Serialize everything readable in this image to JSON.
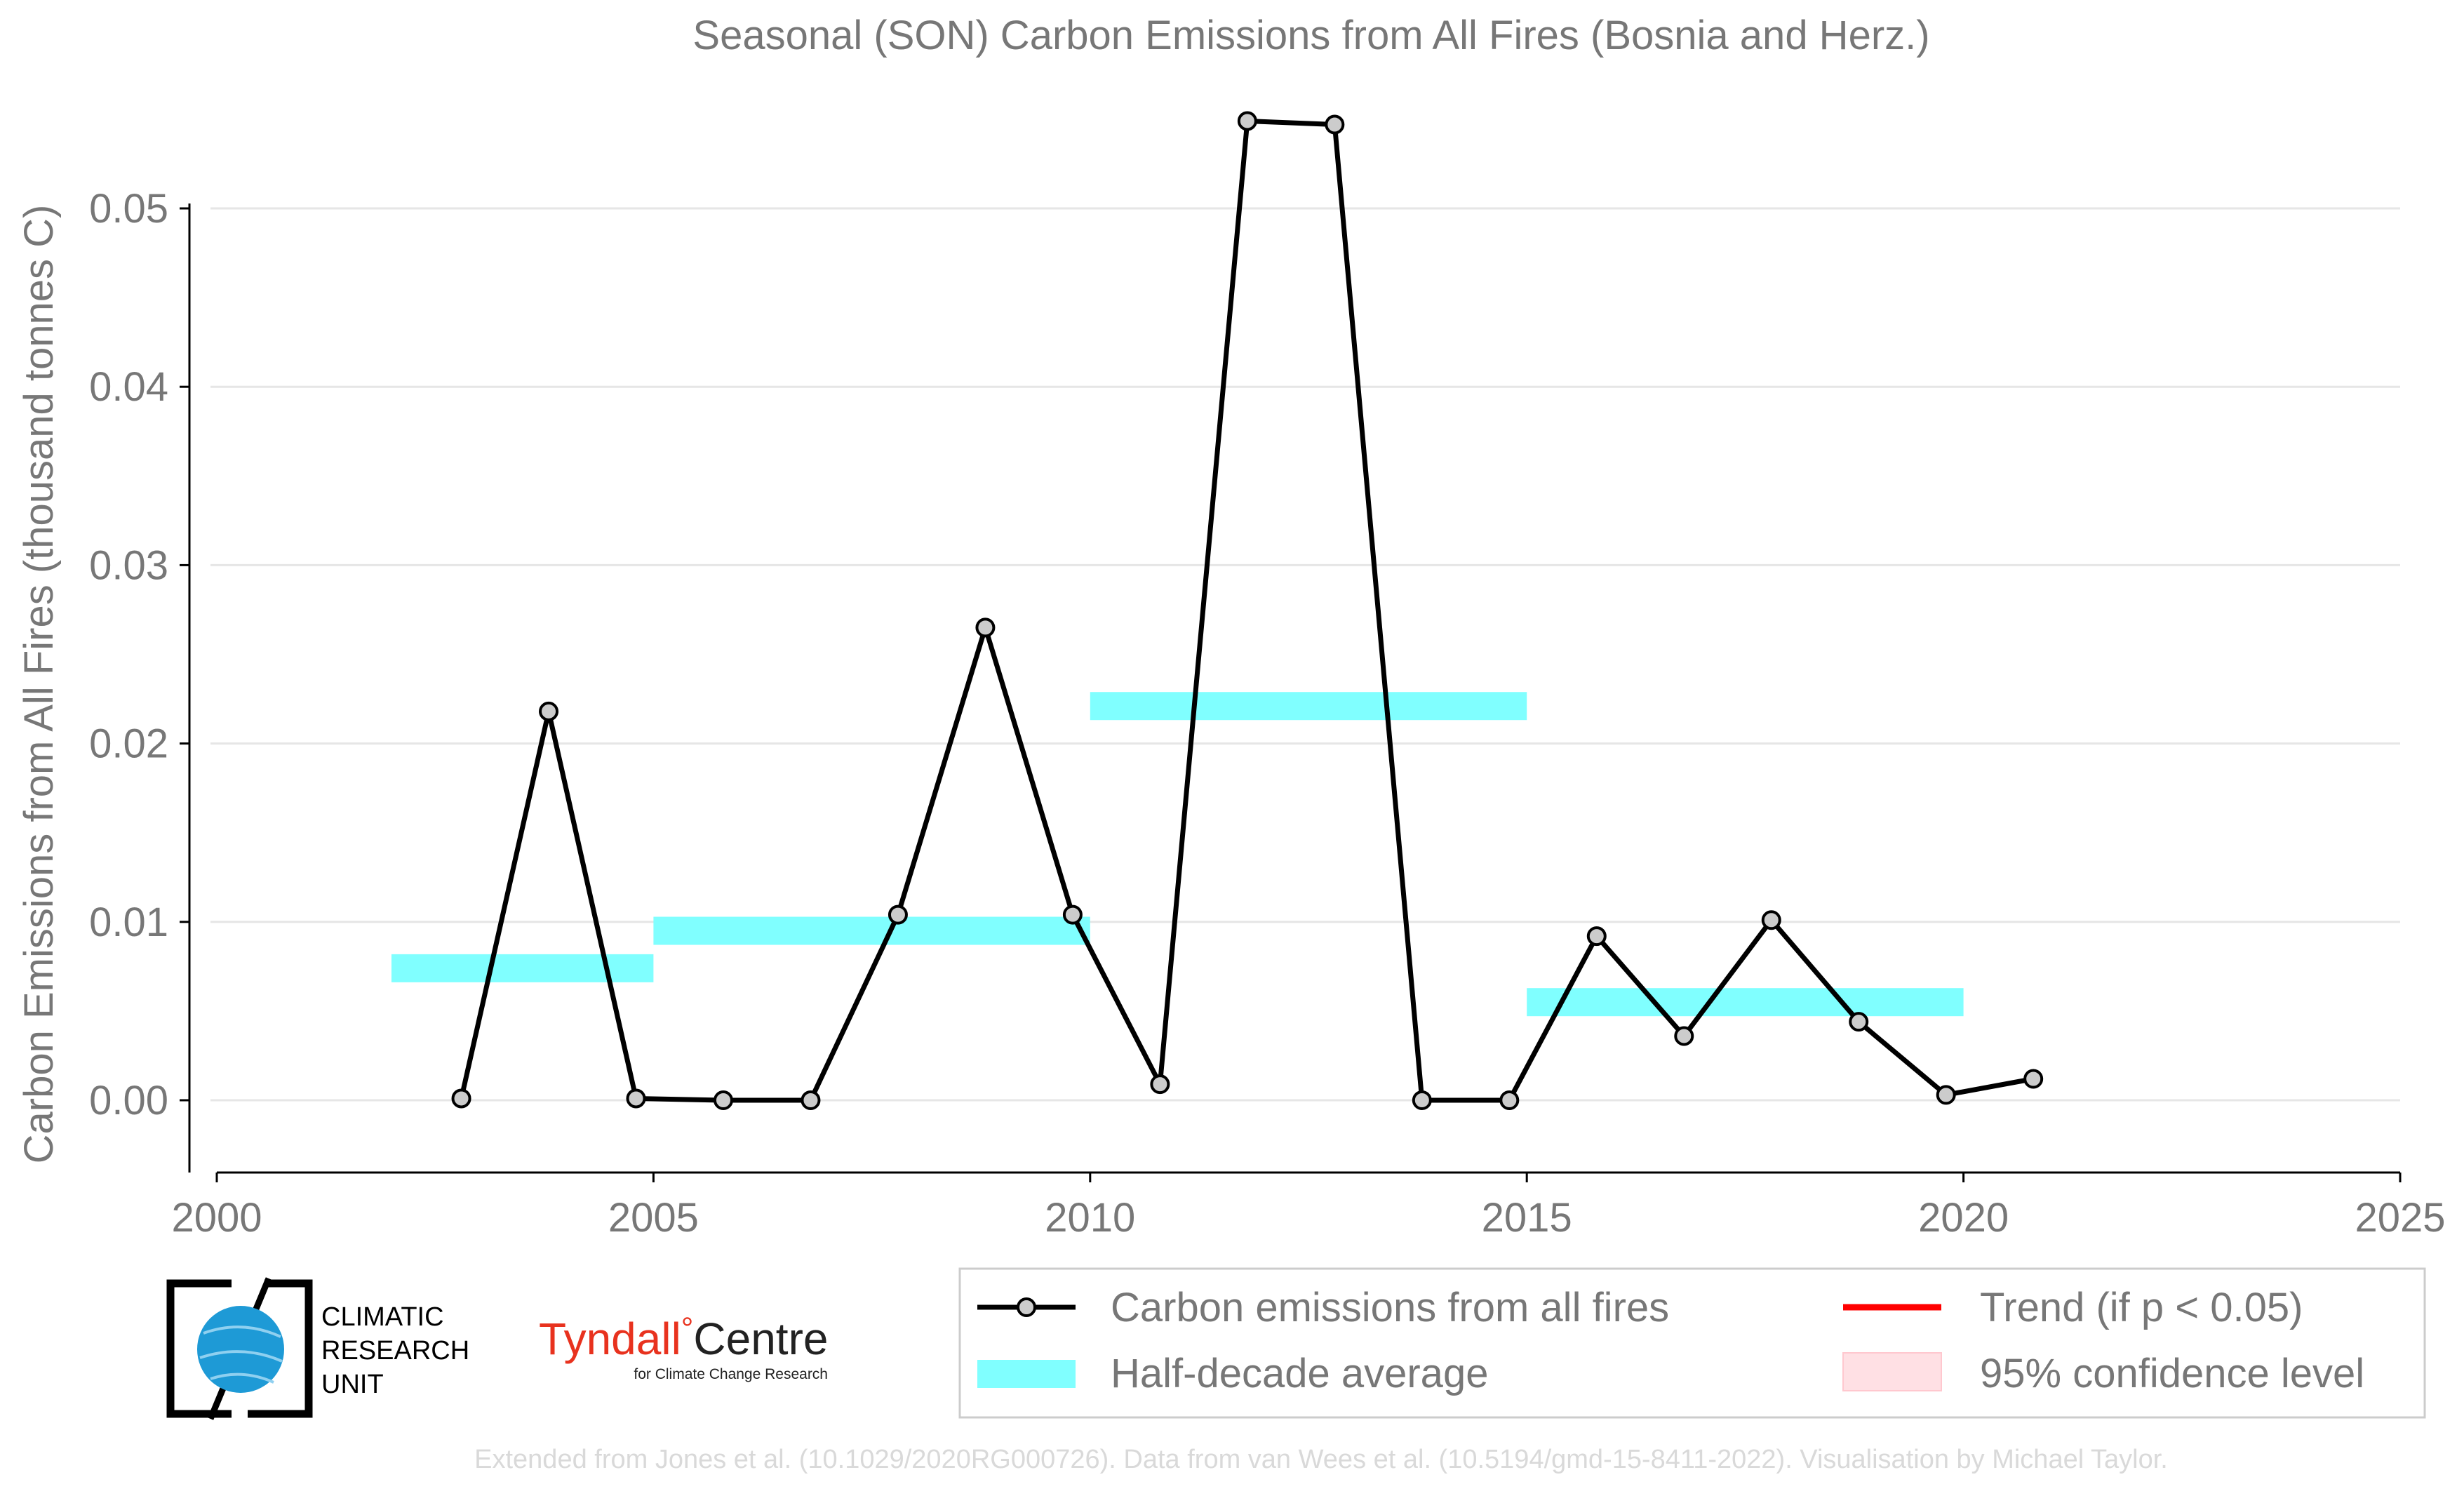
{
  "chart_data": {
    "type": "line",
    "title": "Seasonal (SON) Carbon Emissions from All Fires (Bosnia and Herz.)",
    "xlabel": "",
    "ylabel": "Carbon Emissions from All Fires (thousand tonnes C)",
    "xlim": [
      2000,
      2025
    ],
    "ylim": [
      -0.0043,
      0.057
    ],
    "x_ticks": [
      {
        "value": 2000,
        "label": "2000"
      },
      {
        "value": 2005,
        "label": "2005"
      },
      {
        "value": 2010,
        "label": "2010"
      },
      {
        "value": 2015,
        "label": "2015"
      },
      {
        "value": 2020,
        "label": "2020"
      },
      {
        "value": 2025,
        "label": "2025"
      }
    ],
    "y_ticks": [
      {
        "value": 0.0,
        "label": "0.00"
      },
      {
        "value": 0.01,
        "label": "0.01"
      },
      {
        "value": 0.02,
        "label": "0.02"
      },
      {
        "value": 0.03,
        "label": "0.03"
      },
      {
        "value": 0.04,
        "label": "0.04"
      },
      {
        "value": 0.05,
        "label": "0.05"
      }
    ],
    "grid": "horizontal",
    "legend_position": "bottom-right",
    "series": [
      {
        "name": "Carbon emissions from all fires",
        "color": "#000000",
        "marker_fill": "#cccccc",
        "x": [
          2002.8,
          2003.8,
          2004.8,
          2005.8,
          2006.8,
          2007.8,
          2008.8,
          2009.8,
          2010.8,
          2011.8,
          2012.8,
          2013.8,
          2014.8,
          2015.8,
          2016.8,
          2017.8,
          2018.8,
          2019.8,
          2020.8
        ],
        "values": [
          0.0001,
          0.0218,
          0.0001,
          0.0,
          0.0,
          0.0104,
          0.0265,
          0.0104,
          0.0009,
          0.0549,
          0.0547,
          0.0,
          0.0,
          0.0092,
          0.0036,
          0.0101,
          0.0044,
          0.0003,
          0.0012
        ]
      }
    ],
    "half_decade_averages": {
      "name": "Half-decade average",
      "color": "#80ffff",
      "segments": [
        {
          "start": 2002,
          "end": 2005,
          "value": 0.0074
        },
        {
          "start": 2005,
          "end": 2010,
          "value": 0.0095
        },
        {
          "start": 2010,
          "end": 2015,
          "value": 0.0221
        },
        {
          "start": 2015,
          "end": 2020,
          "value": 0.0055
        }
      ]
    },
    "legend": [
      {
        "label": "Carbon emissions from all fires",
        "kind": "line-marker",
        "color": "#000000"
      },
      {
        "label": "Half-decade average",
        "kind": "band",
        "color": "#80ffff"
      },
      {
        "label": "Trend (if p < 0.05)",
        "kind": "line",
        "color": "#ff0000"
      },
      {
        "label": "95% confidence level",
        "kind": "patch",
        "color": "#ffe0e4"
      }
    ]
  },
  "logos": {
    "cru": {
      "line1": "CLIMATIC",
      "line2": "RESEARCH",
      "line3": "UNIT"
    },
    "tyndall": {
      "name": "Tyndall",
      "degree": "°",
      "centre": "Centre",
      "subtitle": "for Climate Change Research",
      "color": "#e8321e"
    }
  },
  "footer": "Extended from Jones et al. (10.1029/2020RG000726). Data from van Wees et al. (10.5194/gmd-15-8411-2022). Visualisation by Michael Taylor."
}
